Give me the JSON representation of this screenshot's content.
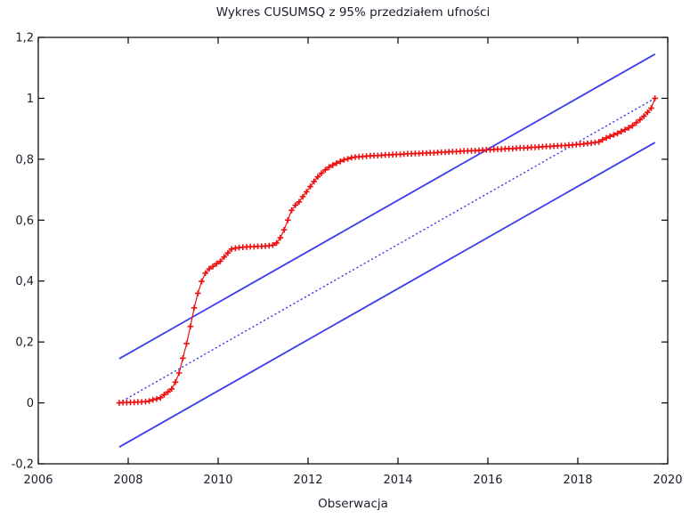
{
  "chart_data": {
    "type": "line",
    "title": "Wykres CUSUMSQ z 95% przedziałem ufności",
    "xlabel": "Obserwacja",
    "ylabel": "",
    "xlim": [
      2006,
      2020
    ],
    "ylim": [
      -0.2,
      1.2
    ],
    "grid": false,
    "legend_position": "none",
    "decimal_separator": ",",
    "frame": "box-with-mirrored-inward-ticks",
    "x_ticks": {
      "values": [
        2006,
        2008,
        2010,
        2012,
        2014,
        2016,
        2018,
        2020
      ],
      "labels": [
        "2006",
        "2008",
        "2010",
        "2012",
        "2014",
        "2016",
        "2018",
        "2020"
      ]
    },
    "y_ticks": {
      "values": [
        -0.2,
        0,
        0.2,
        0.4,
        0.6,
        0.8,
        1,
        1.2
      ],
      "labels": [
        "-0,2",
        "0",
        "0,2",
        "0,4",
        "0,6",
        "0,8",
        "1",
        "1,2"
      ]
    },
    "colors": {
      "cusumsq_series": "#ee1010",
      "band_lines": "#3c3cf0",
      "frame": "#000000",
      "text": "#1b1b2a"
    },
    "series": [
      {
        "name": "CUSUMSQ",
        "type": "line+markers",
        "marker": "plus",
        "color": "#ee1010",
        "x_start": 2007.8,
        "x_step_years": 0.083333,
        "values": [
          0.0,
          0.001,
          0.001,
          0.002,
          0.002,
          0.003,
          0.003,
          0.004,
          0.006,
          0.01,
          0.013,
          0.017,
          0.027,
          0.036,
          0.046,
          0.068,
          0.098,
          0.147,
          0.195,
          0.251,
          0.312,
          0.36,
          0.399,
          0.426,
          0.44,
          0.448,
          0.457,
          0.465,
          0.479,
          0.492,
          0.505,
          0.508,
          0.51,
          0.511,
          0.512,
          0.513,
          0.513,
          0.514,
          0.514,
          0.515,
          0.516,
          0.518,
          0.525,
          0.542,
          0.568,
          0.6,
          0.632,
          0.649,
          0.66,
          0.677,
          0.693,
          0.71,
          0.727,
          0.742,
          0.754,
          0.765,
          0.774,
          0.781,
          0.787,
          0.793,
          0.798,
          0.801,
          0.805,
          0.807,
          0.808,
          0.809,
          0.81,
          0.811,
          0.812,
          0.812,
          0.813,
          0.814,
          0.814,
          0.815,
          0.816,
          0.816,
          0.817,
          0.818,
          0.818,
          0.819,
          0.819,
          0.82,
          0.82,
          0.821,
          0.821,
          0.822,
          0.823,
          0.823,
          0.824,
          0.825,
          0.825,
          0.826,
          0.827,
          0.827,
          0.828,
          0.828,
          0.829,
          0.83,
          0.831,
          0.831,
          0.832,
          0.833,
          0.833,
          0.834,
          0.835,
          0.835,
          0.836,
          0.837,
          0.837,
          0.838,
          0.839,
          0.839,
          0.84,
          0.841,
          0.842,
          0.842,
          0.843,
          0.844,
          0.845,
          0.845,
          0.846,
          0.847,
          0.848,
          0.849,
          0.85,
          0.852,
          0.853,
          0.855,
          0.857,
          0.864,
          0.87,
          0.875,
          0.88,
          0.885,
          0.891,
          0.897,
          0.903,
          0.91,
          0.92,
          0.93,
          0.941,
          0.954,
          0.968,
          1.0
        ]
      },
      {
        "name": "95% upper confidence band",
        "type": "line",
        "style": "solid",
        "color": "#3c3cf0",
        "x": [
          2007.8,
          2019.717
        ],
        "y": [
          0.145,
          1.145
        ]
      },
      {
        "name": "95% lower confidence band",
        "type": "line",
        "style": "solid",
        "color": "#3c3cf0",
        "x": [
          2007.8,
          2019.717
        ],
        "y": [
          -0.145,
          0.855
        ]
      },
      {
        "name": "expected value reference line",
        "type": "line",
        "style": "dotted",
        "color": "#3c3cf0",
        "x": [
          2007.8,
          2019.717
        ],
        "y": [
          0.0,
          1.0
        ]
      }
    ]
  }
}
